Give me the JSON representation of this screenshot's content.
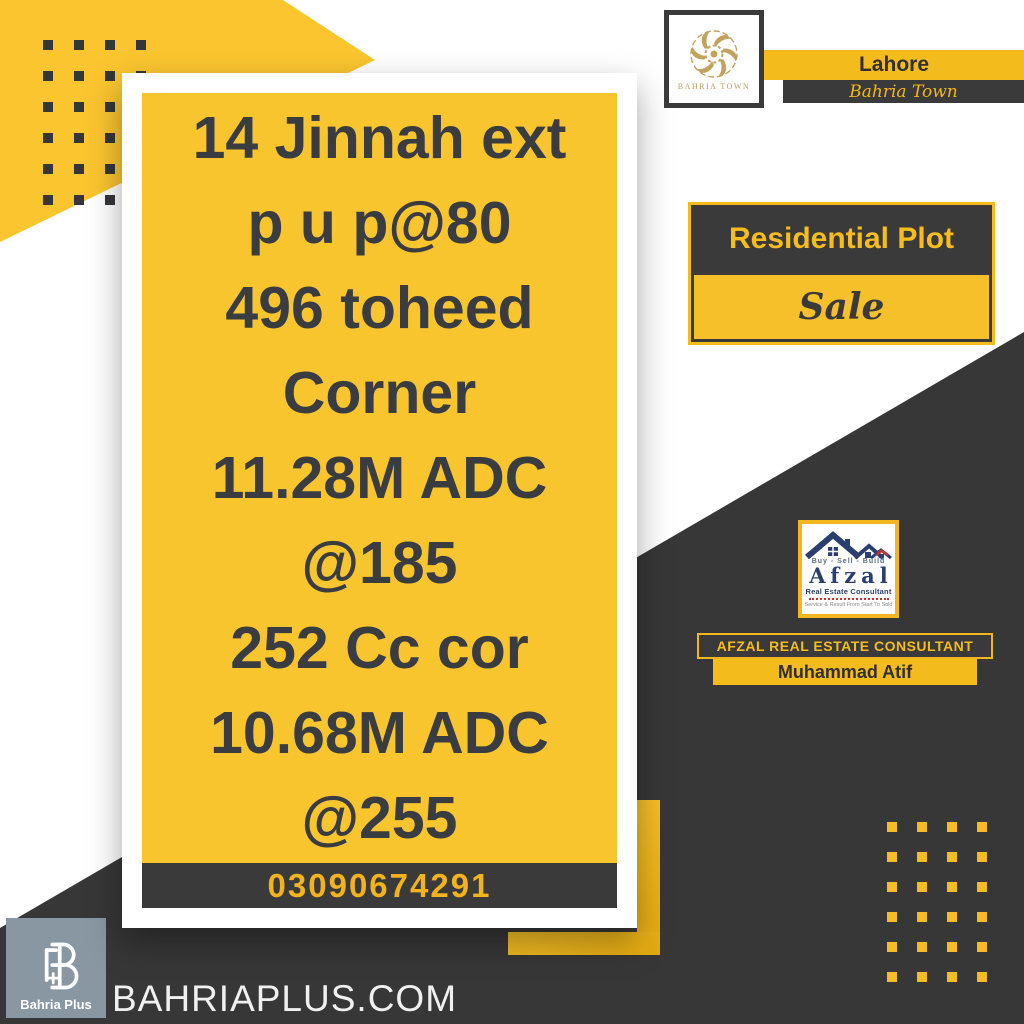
{
  "brand_header": {
    "logo_caption": "BAHRIA TOWN",
    "city": "Lahore",
    "community": "Bahria Town"
  },
  "listing_card": {
    "lines": [
      "14 Jinnah ext",
      "p u p@80",
      "496 toheed",
      "Corner",
      "11.28M ADC",
      "@185",
      "252 Cc cor",
      "10.68M ADC",
      "@255"
    ],
    "phone": "03090674291"
  },
  "offer_badge": {
    "category": "Residential Plot",
    "status": "Sale"
  },
  "consultant": {
    "logo": {
      "tagline": "Buy  -  Sell  -  Build",
      "name": "Afzal",
      "title": "Real Estate Consultant",
      "slogan": "Service & Result From Start To Sold"
    },
    "banner": "AFZAL REAL ESTATE CONSULTANT",
    "agent_name": "Muhammad Atif"
  },
  "footer": {
    "logo_caption": "Bahria Plus",
    "website": "BAHRIAPLUS.COM"
  },
  "colors": {
    "yellow": "#F9C52F",
    "yellow_deep": "#F4BB1D",
    "charcoal": "#3A3A3A",
    "gold": "#BE9F63",
    "navy": "#2A3F6F",
    "red": "#C2342C",
    "slate": "#8997A3"
  }
}
